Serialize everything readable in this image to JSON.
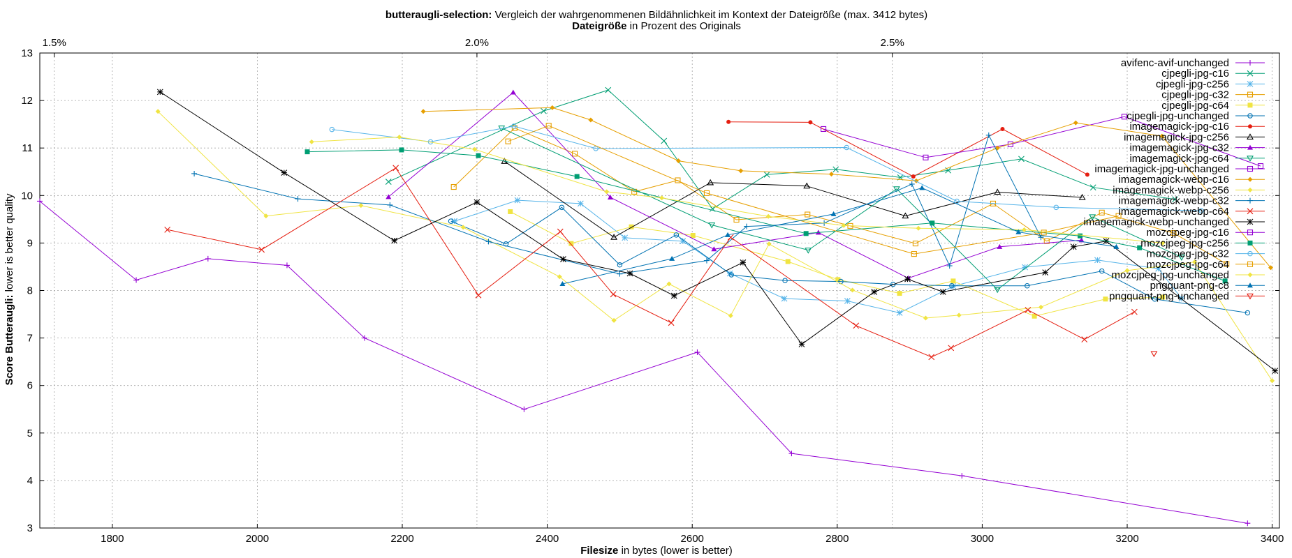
{
  "chart_data": {
    "type": "line",
    "title": {
      "bold": "butteraugli-selection:",
      "rest": " Vergleich der wahrgenommenen Bildähnlichkeit im Kontext der Dateigröße (max. 3412 bytes)"
    },
    "top_axis_title": {
      "bold": "Dateigröße",
      "rest": " in Prozent des Originals"
    },
    "xlabel": {
      "bold": "Filesize",
      "rest": " in bytes (lower is better)"
    },
    "ylabel": {
      "bold": "Score Butteraugli:",
      "rest": " lower is better quality"
    },
    "xlim": [
      1700,
      3410
    ],
    "ylim": [
      3,
      13
    ],
    "x_ticks": [
      1800,
      2000,
      2200,
      2400,
      2600,
      2800,
      3000,
      3200,
      3400
    ],
    "y_ticks": [
      3,
      4,
      5,
      6,
      7,
      8,
      9,
      10,
      11,
      12,
      13
    ],
    "top_ticks": [
      {
        "label": "1.5%",
        "x": 1720
      },
      {
        "label": "2.0%",
        "x": 2303
      },
      {
        "label": "2.5%",
        "x": 2876
      }
    ],
    "grid": true,
    "legend_position": "top-right",
    "series": [
      {
        "name": "avifenc-avif-unchanged",
        "color": "#9400d3",
        "marker": "plus",
        "points": [
          [
            1700,
            9.88
          ],
          [
            1833,
            8.22
          ],
          [
            1932,
            8.67
          ],
          [
            2041,
            8.53
          ],
          [
            2148,
            7.0
          ],
          [
            2368,
            5.5
          ],
          [
            2607,
            6.7
          ],
          [
            2737,
            4.57
          ],
          [
            2972,
            4.1
          ],
          [
            3366,
            3.1
          ]
        ]
      },
      {
        "name": "cjpegli-jpg-c16",
        "color": "#009e73",
        "marker": "x",
        "points": [
          [
            2181,
            10.29
          ],
          [
            2395,
            11.78
          ],
          [
            2484,
            12.22
          ],
          [
            2561,
            11.15
          ],
          [
            2628,
            9.72
          ],
          [
            2703,
            10.44
          ],
          [
            2798,
            10.55
          ],
          [
            2887,
            10.38
          ],
          [
            2953,
            10.53
          ],
          [
            3054,
            10.77
          ],
          [
            3153,
            10.17
          ],
          [
            3266,
            9.92
          ]
        ]
      },
      {
        "name": "cjpegli-jpg-c256",
        "color": "#56b4e9",
        "marker": "asterisk",
        "points": [
          [
            2272,
            9.46
          ],
          [
            2359,
            9.9
          ],
          [
            2446,
            9.83
          ],
          [
            2507,
            9.11
          ],
          [
            2587,
            9.04
          ],
          [
            2652,
            8.36
          ],
          [
            2727,
            7.83
          ],
          [
            2814,
            7.78
          ],
          [
            2886,
            7.53
          ],
          [
            2960,
            8.09
          ],
          [
            3059,
            8.49
          ],
          [
            3159,
            8.64
          ],
          [
            3243,
            8.46
          ],
          [
            3275,
            7.83
          ]
        ]
      },
      {
        "name": "cjpegli-jpg-c32",
        "color": "#e69f00",
        "marker": "square",
        "points": [
          [
            2271,
            10.18
          ],
          [
            2355,
            11.42
          ],
          [
            2438,
            10.88
          ],
          [
            2520,
            10.08
          ],
          [
            2580,
            10.32
          ],
          [
            2661,
            9.49
          ],
          [
            2759,
            9.6
          ],
          [
            2818,
            9.36
          ],
          [
            2908,
            8.99
          ],
          [
            3015,
            9.83
          ],
          [
            3089,
            9.04
          ],
          [
            3165,
            9.64
          ],
          [
            3264,
            9.21
          ],
          [
            3337,
            8.56
          ]
        ]
      },
      {
        "name": "cjpegli-jpg-c64",
        "color": "#f0e442",
        "marker": "filled-square",
        "points": [
          [
            2349,
            9.66
          ],
          [
            2433,
            8.99
          ],
          [
            2516,
            9.34
          ],
          [
            2601,
            9.16
          ],
          [
            2732,
            8.61
          ],
          [
            2801,
            8.23
          ],
          [
            2886,
            7.94
          ],
          [
            2960,
            8.2
          ],
          [
            3072,
            7.46
          ],
          [
            3170,
            7.82
          ],
          [
            3249,
            7.86
          ]
        ]
      },
      {
        "name": "cjpegli-jpg-unchanged",
        "color": "#0072b2",
        "marker": "circle",
        "points": [
          [
            2267,
            9.46
          ],
          [
            2343,
            8.98
          ],
          [
            2420,
            9.75
          ],
          [
            2500,
            8.54
          ],
          [
            2578,
            9.17
          ],
          [
            2654,
            8.33
          ],
          [
            2728,
            8.21
          ],
          [
            2805,
            8.19
          ],
          [
            2877,
            8.13
          ],
          [
            2958,
            8.1
          ],
          [
            3062,
            8.1
          ],
          [
            3165,
            8.41
          ],
          [
            3238,
            7.82
          ],
          [
            3366,
            7.53
          ]
        ]
      },
      {
        "name": "imagemagick-jpg-c16",
        "color": "#e51e10",
        "marker": "filled-circle",
        "points": [
          [
            2650,
            11.55
          ],
          [
            2763,
            11.54
          ],
          [
            2905,
            10.4
          ],
          [
            3028,
            11.4
          ],
          [
            3145,
            10.44
          ]
        ]
      },
      {
        "name": "imagemagick-jpg-c256",
        "color": "#000000",
        "marker": "triangle",
        "points": [
          [
            2341,
            10.72
          ],
          [
            2492,
            9.12
          ],
          [
            2625,
            10.27
          ],
          [
            2758,
            10.2
          ],
          [
            2894,
            9.57
          ],
          [
            3021,
            10.07
          ],
          [
            3138,
            9.96
          ]
        ]
      },
      {
        "name": "imagemagick-jpg-c32",
        "color": "#9400d3",
        "marker": "filled-triangle",
        "points": [
          [
            2181,
            9.97
          ],
          [
            2353,
            12.17
          ],
          [
            2487,
            9.96
          ],
          [
            2630,
            8.87
          ],
          [
            2774,
            9.22
          ],
          [
            2898,
            8.26
          ],
          [
            3024,
            8.92
          ],
          [
            3137,
            9.06
          ]
        ]
      },
      {
        "name": "imagemagick-jpg-c64",
        "color": "#009e73",
        "marker": "inv-triangle",
        "points": [
          [
            2337,
            11.42
          ],
          [
            2627,
            9.38
          ],
          [
            2760,
            8.85
          ],
          [
            2882,
            10.14
          ],
          [
            3021,
            8.02
          ],
          [
            3152,
            9.55
          ],
          [
            3275,
            8.7
          ]
        ]
      },
      {
        "name": "imagemagick-jpg-unchanged",
        "color": "#9400d3",
        "marker": "square",
        "points": [
          [
            2781,
            11.4
          ],
          [
            2922,
            10.8
          ],
          [
            3039,
            11.08
          ],
          [
            3196,
            11.66
          ],
          [
            3384,
            10.62
          ]
        ]
      },
      {
        "name": "imagemagick-webp-c16",
        "color": "#e69f00",
        "marker": "filled-diamond",
        "points": [
          [
            2229,
            11.77
          ],
          [
            2407,
            11.85
          ],
          [
            2460,
            11.59
          ],
          [
            2581,
            10.73
          ],
          [
            2667,
            10.52
          ],
          [
            2792,
            10.45
          ],
          [
            2909,
            10.31
          ],
          [
            3021,
            11.0
          ],
          [
            3129,
            11.53
          ],
          [
            3248,
            11.25
          ],
          [
            3398,
            8.48
          ]
        ]
      },
      {
        "name": "imagemagick-webp-c256",
        "color": "#f0e442",
        "marker": "filled-diamond",
        "points": [
          [
            1863,
            11.77
          ],
          [
            2012,
            9.57
          ],
          [
            2143,
            9.79
          ],
          [
            2284,
            9.33
          ],
          [
            2417,
            8.29
          ],
          [
            2492,
            7.37
          ],
          [
            2568,
            8.14
          ],
          [
            2653,
            7.47
          ],
          [
            2706,
            8.98
          ],
          [
            2821,
            8.01
          ],
          [
            2922,
            7.42
          ],
          [
            2968,
            7.48
          ],
          [
            3081,
            7.65
          ],
          [
            3200,
            8.42
          ],
          [
            3293,
            8.6
          ],
          [
            3400,
            6.1
          ]
        ]
      },
      {
        "name": "imagemagick-webp-c32",
        "color": "#0072b2",
        "marker": "plus",
        "points": [
          [
            1913,
            10.46
          ],
          [
            2056,
            9.93
          ],
          [
            2183,
            9.8
          ],
          [
            2319,
            9.03
          ],
          [
            2500,
            8.35
          ],
          [
            2620,
            8.63
          ],
          [
            2675,
            9.35
          ],
          [
            2782,
            9.42
          ],
          [
            2903,
            10.24
          ],
          [
            2955,
            8.52
          ],
          [
            3009,
            11.27
          ],
          [
            3081,
            9.12
          ]
        ]
      },
      {
        "name": "imagemagick-webp-c64",
        "color": "#e51e10",
        "marker": "x",
        "points": [
          [
            1876,
            9.28
          ],
          [
            2006,
            8.86
          ],
          [
            2191,
            10.58
          ],
          [
            2305,
            7.9
          ],
          [
            2418,
            9.24
          ],
          [
            2491,
            7.92
          ],
          [
            2571,
            7.32
          ],
          [
            2653,
            9.12
          ],
          [
            2826,
            7.26
          ],
          [
            2930,
            6.6
          ],
          [
            2957,
            6.79
          ],
          [
            3063,
            7.59
          ],
          [
            3141,
            6.97
          ],
          [
            3210,
            7.55
          ]
        ]
      },
      {
        "name": "imagemagick-webp-unchanged",
        "color": "#000000",
        "marker": "asterisk",
        "points": [
          [
            1866,
            12.18
          ],
          [
            2037,
            10.48
          ],
          [
            2189,
            9.05
          ],
          [
            2303,
            9.86
          ],
          [
            2422,
            8.66
          ],
          [
            2514,
            8.36
          ],
          [
            2575,
            7.89
          ],
          [
            2670,
            8.59
          ],
          [
            2751,
            6.87
          ],
          [
            2851,
            7.97
          ],
          [
            2897,
            8.24
          ],
          [
            2946,
            7.97
          ],
          [
            3087,
            8.38
          ],
          [
            3126,
            8.92
          ],
          [
            3171,
            9.04
          ],
          [
            3404,
            6.31
          ]
        ]
      },
      {
        "name": "mozcjpeg-jpg-c16",
        "color": "#9400d3",
        "marker": "square",
        "points": []
      },
      {
        "name": "mozcjpeg-jpg-c256",
        "color": "#009e73",
        "marker": "filled-square",
        "points": [
          [
            2069,
            10.92
          ],
          [
            2199,
            10.96
          ],
          [
            2305,
            10.84
          ],
          [
            2441,
            10.4
          ],
          [
            2757,
            9.2
          ],
          [
            2931,
            9.42
          ],
          [
            3135,
            9.15
          ],
          [
            3217,
            8.9
          ],
          [
            3335,
            8.2
          ]
        ]
      },
      {
        "name": "mozcjpeg-jpg-c32",
        "color": "#56b4e9",
        "marker": "circle",
        "points": [
          [
            2103,
            11.39
          ],
          [
            2239,
            11.13
          ],
          [
            2354,
            11.46
          ],
          [
            2467,
            10.99
          ],
          [
            2813,
            11.01
          ],
          [
            2965,
            9.88
          ],
          [
            3102,
            9.75
          ],
          [
            3302,
            9.68
          ]
        ]
      },
      {
        "name": "mozcjpeg-jpg-c64",
        "color": "#e69f00",
        "marker": "square",
        "points": [
          [
            2346,
            11.14
          ],
          [
            2402,
            11.47
          ],
          [
            2620,
            10.05
          ],
          [
            2906,
            8.77
          ],
          [
            3085,
            9.22
          ],
          [
            3188,
            9.57
          ]
        ]
      },
      {
        "name": "mozcjpeg-jpg-unchanged",
        "color": "#f0e442",
        "marker": "filled-diamond",
        "points": [
          [
            2075,
            11.13
          ],
          [
            2196,
            11.23
          ],
          [
            2300,
            10.97
          ],
          [
            2482,
            10.08
          ],
          [
            2558,
            9.95
          ],
          [
            2705,
            9.56
          ],
          [
            2809,
            9.37
          ],
          [
            2912,
            9.31
          ],
          [
            3058,
            9.28
          ],
          [
            3249,
            9.0
          ]
        ]
      },
      {
        "name": "pngquant-png-c8",
        "color": "#0072b2",
        "marker": "filled-triangle",
        "points": [
          [
            2421,
            8.14
          ],
          [
            2572,
            8.67
          ],
          [
            2649,
            9.17
          ],
          [
            2795,
            9.61
          ],
          [
            2917,
            10.16
          ],
          [
            3050,
            9.23
          ],
          [
            3185,
            8.92
          ]
        ]
      },
      {
        "name": "pngquant-png-unchanged",
        "color": "#e51e10",
        "marker": "inv-triangle",
        "points": [
          [
            3237,
            6.67
          ]
        ]
      }
    ]
  }
}
